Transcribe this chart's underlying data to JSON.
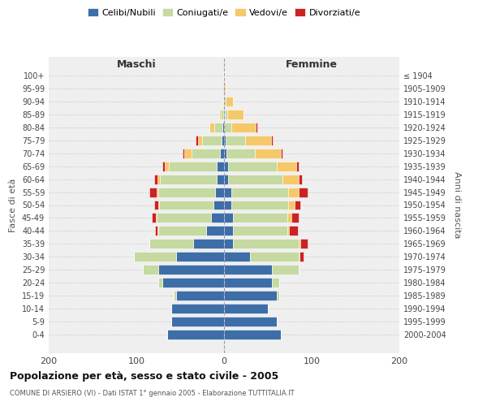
{
  "age_groups": [
    "100+",
    "95-99",
    "90-94",
    "85-89",
    "80-84",
    "75-79",
    "70-74",
    "65-69",
    "60-64",
    "55-59",
    "50-54",
    "45-49",
    "40-44",
    "35-39",
    "30-34",
    "25-29",
    "20-24",
    "15-19",
    "10-14",
    "5-9",
    "0-4"
  ],
  "birth_years": [
    "≤ 1904",
    "1905-1909",
    "1910-1914",
    "1915-1919",
    "1920-1924",
    "1925-1929",
    "1930-1934",
    "1935-1939",
    "1940-1944",
    "1945-1949",
    "1950-1954",
    "1955-1959",
    "1960-1964",
    "1965-1969",
    "1970-1974",
    "1975-1979",
    "1980-1984",
    "1985-1989",
    "1990-1994",
    "1995-1999",
    "2000-2004"
  ],
  "colors": {
    "celibi": "#3d6ea8",
    "coniugati": "#c5d9a0",
    "vedovi": "#f5c96a",
    "divorziati": "#cc2222"
  },
  "males": {
    "celibi": [
      1,
      0,
      0,
      1,
      2,
      3,
      5,
      8,
      8,
      10,
      12,
      15,
      20,
      35,
      55,
      75,
      70,
      55,
      60,
      60,
      65
    ],
    "coniugati": [
      0,
      0,
      1,
      3,
      9,
      22,
      32,
      55,
      65,
      65,
      62,
      62,
      55,
      50,
      48,
      18,
      5,
      2,
      0,
      0,
      0
    ],
    "vedovi": [
      0,
      0,
      1,
      2,
      6,
      5,
      8,
      5,
      3,
      2,
      1,
      1,
      1,
      0,
      0,
      0,
      0,
      0,
      0,
      0,
      0
    ],
    "divorziati": [
      0,
      0,
      0,
      0,
      0,
      2,
      2,
      2,
      4,
      8,
      5,
      4,
      3,
      0,
      0,
      0,
      0,
      0,
      0,
      0,
      0
    ]
  },
  "females": {
    "nubili": [
      0,
      0,
      0,
      1,
      0,
      2,
      3,
      5,
      5,
      8,
      8,
      10,
      10,
      10,
      30,
      55,
      55,
      60,
      50,
      60,
      65
    ],
    "coniugate": [
      0,
      0,
      2,
      3,
      8,
      22,
      32,
      55,
      62,
      65,
      65,
      62,
      62,
      75,
      55,
      30,
      8,
      3,
      0,
      0,
      0
    ],
    "vedove": [
      1,
      2,
      8,
      18,
      28,
      30,
      30,
      22,
      18,
      12,
      8,
      5,
      2,
      2,
      1,
      0,
      0,
      0,
      0,
      0,
      0
    ],
    "divorziate": [
      0,
      0,
      0,
      0,
      2,
      2,
      2,
      3,
      4,
      10,
      6,
      8,
      10,
      8,
      5,
      0,
      0,
      0,
      0,
      0,
      0
    ]
  },
  "xlim": 200,
  "title": "Popolazione per età, sesso e stato civile - 2005",
  "subtitle": "COMUNE DI ARSIERO (VI) - Dati ISTAT 1° gennaio 2005 - Elaborazione TUTTITALIA.IT",
  "xlabel_left": "Maschi",
  "xlabel_right": "Femmine",
  "ylabel_left": "Fasce di età",
  "ylabel_right": "Anni di nascita",
  "legend_labels": [
    "Celibi/Nubili",
    "Coniugati/e",
    "Vedovi/e",
    "Divorziati/e"
  ],
  "background_color": "#ffffff",
  "plot_bg": "#efefef",
  "bar_height": 0.75
}
